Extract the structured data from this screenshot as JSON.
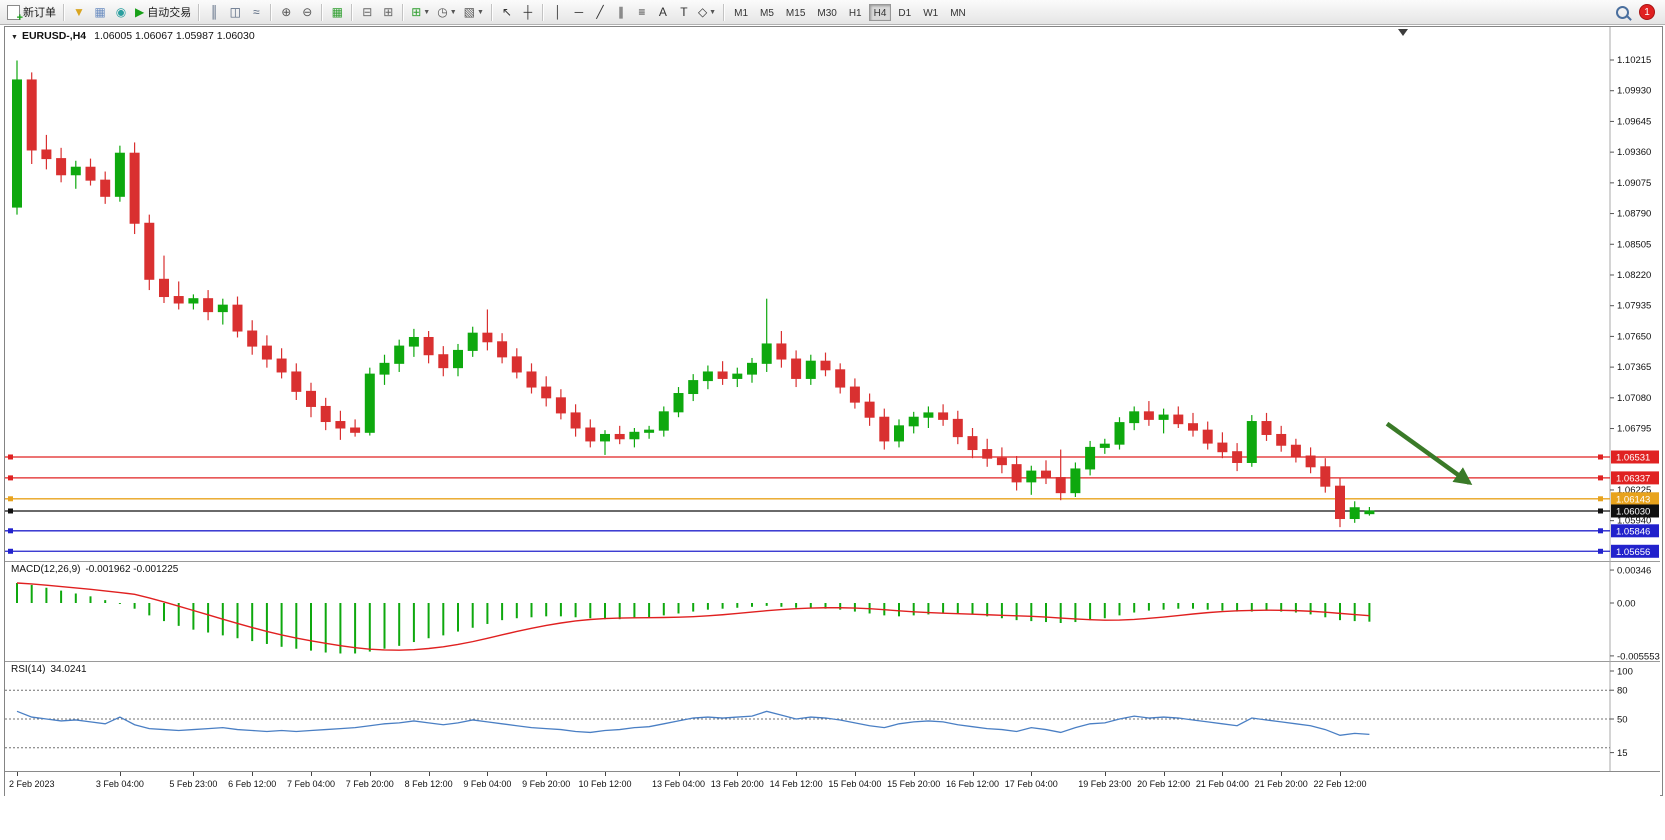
{
  "icons": {
    "market_watch": "▼",
    "data_window": "▦",
    "navigator": "◉",
    "auto_trading_play": "▶",
    "chart_bars": "║",
    "chart_candles": "◫",
    "chart_line": "≈",
    "zoom_in": "⊕",
    "zoom_out": "⊖",
    "tile_windows": "▦",
    "cascade_windows": "⊟",
    "arrange_windows": "⊞",
    "new_chart": "⊞",
    "profiles": "◷",
    "indicators": "▧",
    "caret": "▼",
    "cursor": "↖",
    "crosshair": "┼",
    "vertical_line": "│",
    "horizontal_line": "─",
    "trendline": "╱",
    "channel": "∥",
    "fibonacci": "≡",
    "text_tool": "A",
    "label_tool": "T",
    "shapes": "◇",
    "collapse": "▼"
  },
  "toolbar": {
    "new_order_label": "新订单",
    "auto_trading_label": "自动交易",
    "timeframes": [
      "M1",
      "M5",
      "M15",
      "M30",
      "H1",
      "H4",
      "D1",
      "W1",
      "MN"
    ],
    "active_timeframe": "H4",
    "notification_count": "1"
  },
  "chart": {
    "title_symbol": "EURUSD-,H4",
    "title_ohlc": "1.06005 1.06067 1.05987 1.06030"
  },
  "chart_data": {
    "type": "candlestick",
    "symbol": "EURUSD-",
    "timeframe": "H4",
    "bull_color": "#0ea80e",
    "bear_color": "#d93030",
    "last_ohlc": {
      "open": 1.06005,
      "high": 1.06067,
      "low": 1.05987,
      "close": 1.0603
    },
    "y_ticks": [
      "1.10215",
      "1.09930",
      "1.09645",
      "1.09360",
      "1.09075",
      "1.08790",
      "1.08505",
      "1.08220",
      "1.07935",
      "1.07650",
      "1.07365",
      "1.07080",
      "1.06795",
      "1.06225",
      "1.05940"
    ],
    "hlines": [
      {
        "price": 1.06531,
        "label": "1.06531",
        "color": "#e02222",
        "type": "resistance"
      },
      {
        "price": 1.06337,
        "label": "1.06337",
        "color": "#e02222",
        "type": "resistance"
      },
      {
        "price": 1.06143,
        "label": "1.06143",
        "color": "#e8a31d",
        "type": "pivot"
      },
      {
        "price": 1.0603,
        "label": "1.06030",
        "color": "#101010",
        "type": "current-price"
      },
      {
        "price": 1.05846,
        "label": "1.05846",
        "color": "#2222cc",
        "type": "support"
      },
      {
        "price": 1.05656,
        "label": "1.05656",
        "color": "#2222cc",
        "type": "support"
      }
    ],
    "arrow": {
      "x1_bar": 93.2,
      "y1_price": 1.0684,
      "x2_bar": 98.8,
      "y2_price": 1.0629,
      "color": "#3a7a28"
    },
    "candles": [
      [
        1.0885,
        1.1021,
        1.0878,
        1.1003
      ],
      [
        1.1003,
        1.101,
        1.0925,
        1.0938
      ],
      [
        1.0938,
        1.0952,
        1.092,
        1.093
      ],
      [
        1.093,
        1.094,
        1.0908,
        1.0915
      ],
      [
        1.0915,
        1.0928,
        1.0902,
        1.0922
      ],
      [
        1.0922,
        1.093,
        1.0905,
        1.091
      ],
      [
        1.091,
        1.0918,
        1.0888,
        1.0895
      ],
      [
        1.0895,
        1.0942,
        1.089,
        1.0935
      ],
      [
        1.0935,
        1.0945,
        1.086,
        1.087
      ],
      [
        1.087,
        1.0878,
        1.0808,
        1.0818
      ],
      [
        1.0818,
        1.084,
        1.0796,
        1.0802
      ],
      [
        1.0802,
        1.0816,
        1.079,
        1.0796
      ],
      [
        1.0796,
        1.0804,
        1.079,
        1.08
      ],
      [
        1.08,
        1.0808,
        1.078,
        1.0788
      ],
      [
        1.0788,
        1.08,
        1.0776,
        1.0794
      ],
      [
        1.0794,
        1.0802,
        1.0764,
        1.077
      ],
      [
        1.077,
        1.078,
        1.0748,
        1.0756
      ],
      [
        1.0756,
        1.0766,
        1.0736,
        1.0744
      ],
      [
        1.0744,
        1.0754,
        1.0726,
        1.0732
      ],
      [
        1.0732,
        1.074,
        1.0706,
        1.0714
      ],
      [
        1.0714,
        1.0722,
        1.069,
        1.07
      ],
      [
        1.07,
        1.0708,
        1.0678,
        1.0686
      ],
      [
        1.0686,
        1.0696,
        1.0669,
        1.068
      ],
      [
        1.068,
        1.0688,
        1.0672,
        1.0676
      ],
      [
        1.0676,
        1.0736,
        1.0673,
        1.073
      ],
      [
        1.073,
        1.0748,
        1.072,
        1.074
      ],
      [
        1.074,
        1.0762,
        1.0732,
        1.0756
      ],
      [
        1.0756,
        1.0772,
        1.0746,
        1.0764
      ],
      [
        1.0764,
        1.077,
        1.074,
        1.0748
      ],
      [
        1.0748,
        1.0756,
        1.0728,
        1.0736
      ],
      [
        1.0736,
        1.0758,
        1.0728,
        1.0752
      ],
      [
        1.0752,
        1.0774,
        1.0746,
        1.0768
      ],
      [
        1.0768,
        1.079,
        1.0752,
        1.076
      ],
      [
        1.076,
        1.0768,
        1.074,
        1.0746
      ],
      [
        1.0746,
        1.0754,
        1.0726,
        1.0732
      ],
      [
        1.0732,
        1.074,
        1.0712,
        1.0718
      ],
      [
        1.0718,
        1.0728,
        1.07,
        1.0708
      ],
      [
        1.0708,
        1.0716,
        1.0688,
        1.0694
      ],
      [
        1.0694,
        1.0702,
        1.0672,
        1.068
      ],
      [
        1.068,
        1.0688,
        1.0662,
        1.0668
      ],
      [
        1.0668,
        1.0678,
        1.0655,
        1.0674
      ],
      [
        1.0674,
        1.0682,
        1.0665,
        1.067
      ],
      [
        1.067,
        1.068,
        1.0662,
        1.0676
      ],
      [
        1.0676,
        1.0682,
        1.067,
        1.0678
      ],
      [
        1.0678,
        1.07,
        1.0672,
        1.0695
      ],
      [
        1.0695,
        1.0718,
        1.069,
        1.0712
      ],
      [
        1.0712,
        1.073,
        1.0705,
        1.0724
      ],
      [
        1.0724,
        1.0738,
        1.0716,
        1.0732
      ],
      [
        1.0732,
        1.0742,
        1.072,
        1.0726
      ],
      [
        1.0726,
        1.0736,
        1.0718,
        1.073
      ],
      [
        1.073,
        1.0745,
        1.0722,
        1.074
      ],
      [
        1.074,
        1.08,
        1.0732,
        1.0758
      ],
      [
        1.0758,
        1.077,
        1.0736,
        1.0744
      ],
      [
        1.0744,
        1.0752,
        1.0718,
        1.0726
      ],
      [
        1.0726,
        1.0748,
        1.072,
        1.0742
      ],
      [
        1.0742,
        1.075,
        1.0728,
        1.0734
      ],
      [
        1.0734,
        1.074,
        1.0712,
        1.0718
      ],
      [
        1.0718,
        1.0726,
        1.0698,
        1.0704
      ],
      [
        1.0704,
        1.0712,
        1.0682,
        1.069
      ],
      [
        1.069,
        1.0698,
        1.066,
        1.0668
      ],
      [
        1.0668,
        1.0688,
        1.0662,
        1.0682
      ],
      [
        1.0682,
        1.0695,
        1.0675,
        1.069
      ],
      [
        1.069,
        1.07,
        1.068,
        1.0694
      ],
      [
        1.0694,
        1.0702,
        1.0682,
        1.0688
      ],
      [
        1.0688,
        1.0696,
        1.0665,
        1.0672
      ],
      [
        1.0672,
        1.068,
        1.0652,
        1.066
      ],
      [
        1.066,
        1.067,
        1.0644,
        1.0652
      ],
      [
        1.0652,
        1.0662,
        1.0638,
        1.0646
      ],
      [
        1.0646,
        1.0654,
        1.0622,
        1.063
      ],
      [
        1.063,
        1.0645,
        1.0618,
        1.064
      ],
      [
        1.064,
        1.065,
        1.0628,
        1.0634
      ],
      [
        1.0634,
        1.066,
        1.0613,
        1.062
      ],
      [
        1.062,
        1.0648,
        1.0616,
        1.0642
      ],
      [
        1.0642,
        1.0668,
        1.0636,
        1.0662
      ],
      [
        1.0662,
        1.067,
        1.0656,
        1.0665
      ],
      [
        1.0665,
        1.069,
        1.066,
        1.0685
      ],
      [
        1.0685,
        1.07,
        1.0678,
        1.0695
      ],
      [
        1.0695,
        1.0705,
        1.0682,
        1.0688
      ],
      [
        1.0688,
        1.0698,
        1.0675,
        1.0692
      ],
      [
        1.0692,
        1.07,
        1.068,
        1.0684
      ],
      [
        1.0684,
        1.0694,
        1.0672,
        1.0678
      ],
      [
        1.0678,
        1.0686,
        1.066,
        1.0666
      ],
      [
        1.0666,
        1.0676,
        1.0652,
        1.0658
      ],
      [
        1.0658,
        1.0666,
        1.064,
        1.0648
      ],
      [
        1.0648,
        1.0692,
        1.0644,
        1.0686
      ],
      [
        1.0686,
        1.0694,
        1.0668,
        1.0674
      ],
      [
        1.0674,
        1.0682,
        1.0658,
        1.0664
      ],
      [
        1.0664,
        1.067,
        1.0648,
        1.0654
      ],
      [
        1.0654,
        1.0662,
        1.0638,
        1.0644
      ],
      [
        1.0644,
        1.0652,
        1.062,
        1.0626
      ],
      [
        1.0626,
        1.0634,
        1.0588,
        1.0596
      ],
      [
        1.0596,
        1.0612,
        1.0592,
        1.0606
      ],
      [
        1.06005,
        1.06067,
        1.05987,
        1.0603
      ]
    ],
    "x_labels": [
      {
        "i": 0,
        "t": "2 Feb 2023"
      },
      {
        "i": 7,
        "t": "3 Feb 04:00"
      },
      {
        "i": 12,
        "t": "5 Feb 23:00"
      },
      {
        "i": 16,
        "t": "6 Feb 12:00"
      },
      {
        "i": 20,
        "t": "7 Feb 04:00"
      },
      {
        "i": 24,
        "t": "7 Feb 20:00"
      },
      {
        "i": 28,
        "t": "8 Feb 12:00"
      },
      {
        "i": 32,
        "t": "9 Feb 04:00"
      },
      {
        "i": 36,
        "t": "9 Feb 20:00"
      },
      {
        "i": 40,
        "t": "10 Feb 12:00"
      },
      {
        "i": 45,
        "t": "13 Feb 04:00"
      },
      {
        "i": 49,
        "t": "13 Feb 20:00"
      },
      {
        "i": 53,
        "t": "14 Feb 12:00"
      },
      {
        "i": 57,
        "t": "15 Feb 04:00"
      },
      {
        "i": 61,
        "t": "15 Feb 20:00"
      },
      {
        "i": 65,
        "t": "16 Feb 12:00"
      },
      {
        "i": 69,
        "t": "17 Feb 04:00"
      },
      {
        "i": 74,
        "t": "19 Feb 23:00"
      },
      {
        "i": 78,
        "t": "20 Feb 12:00"
      },
      {
        "i": 82,
        "t": "21 Feb 04:00"
      },
      {
        "i": 86,
        "t": "21 Feb 20:00"
      },
      {
        "i": 90,
        "t": "22 Feb 12:00"
      }
    ],
    "macd": {
      "label": "MACD(12,26,9)",
      "values_label": "-0.001962 -0.001225",
      "axis_labels": [
        "0.00346",
        "0.00",
        "-0.005553"
      ],
      "histogram_color": "#0ea80e",
      "signal_color": "#e02020",
      "signal_period": 9,
      "main": [
        0.0021,
        0.0019,
        0.0016,
        0.0013,
        0.001,
        0.0007,
        0.0003,
        -0.0001,
        -0.0006,
        -0.0013,
        -0.0019,
        -0.0024,
        -0.0028,
        -0.0031,
        -0.0034,
        -0.0037,
        -0.004,
        -0.0043,
        -0.0046,
        -0.0048,
        -0.005,
        -0.0052,
        -0.0053,
        -0.0053,
        -0.0051,
        -0.0048,
        -0.0045,
        -0.0041,
        -0.0037,
        -0.0034,
        -0.003,
        -0.0026,
        -0.0022,
        -0.0018,
        -0.0016,
        -0.0015,
        -0.0014,
        -0.0014,
        -0.0015,
        -0.0016,
        -0.0017,
        -0.0017,
        -0.0016,
        -0.0015,
        -0.0013,
        -0.0011,
        -0.0009,
        -0.0007,
        -0.0006,
        -0.0005,
        -0.0004,
        -0.0003,
        -0.0004,
        -0.0005,
        -0.0005,
        -0.0006,
        -0.0007,
        -0.0009,
        -0.0011,
        -0.0013,
        -0.0014,
        -0.0013,
        -0.0012,
        -0.0011,
        -0.0011,
        -0.0012,
        -0.0014,
        -0.0016,
        -0.0018,
        -0.0019,
        -0.002,
        -0.0021,
        -0.002,
        -0.0018,
        -0.0016,
        -0.0013,
        -0.001,
        -0.0008,
        -0.0007,
        -0.0006,
        -0.0006,
        -0.0007,
        -0.0008,
        -0.0009,
        -0.0009,
        -0.0008,
        -0.0009,
        -0.001,
        -0.0012,
        -0.0015,
        -0.0018,
        -0.0019,
        -0.001962
      ]
    },
    "rsi": {
      "label": "RSI(14)",
      "value_label": "34.0241",
      "axis_labels": [
        "100",
        "80",
        "50",
        "15"
      ],
      "levels": [
        80,
        50,
        20
      ],
      "line_color": "#4a7fc4",
      "values": [
        58,
        52,
        50,
        48,
        49,
        47,
        45,
        52,
        44,
        40,
        39,
        38,
        39,
        40,
        41,
        39,
        38,
        37,
        38,
        37,
        38,
        39,
        40,
        41,
        43,
        45,
        46,
        48,
        46,
        44,
        46,
        49,
        47,
        45,
        43,
        41,
        40,
        39,
        37,
        36,
        38,
        39,
        41,
        42,
        45,
        48,
        51,
        52,
        51,
        52,
        53,
        58,
        54,
        50,
        52,
        51,
        49,
        46,
        43,
        41,
        45,
        47,
        48,
        47,
        44,
        42,
        40,
        39,
        37,
        41,
        39,
        36,
        41,
        45,
        46,
        50,
        53,
        51,
        52,
        51,
        49,
        47,
        45,
        43,
        51,
        49,
        47,
        45,
        43,
        39,
        33,
        35,
        34.02
      ]
    }
  }
}
